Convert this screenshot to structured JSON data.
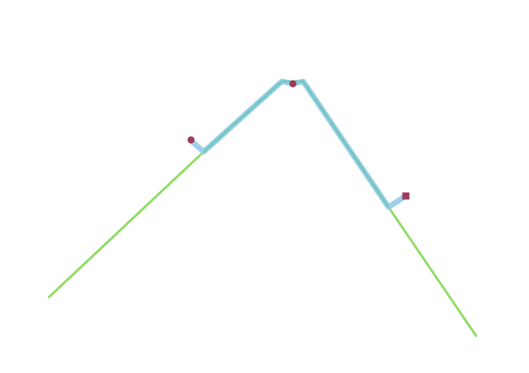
{
  "colors": {
    "background": "#ffffff",
    "route_line": "#8fdc63",
    "highlight_line": "#9dcfe8",
    "highlight_overlap": "#6cc6b8",
    "marker": "#9e3a5a"
  },
  "scene": {
    "route_line": {
      "name": "route-line",
      "interactable": false
    },
    "highlight_path": {
      "name": "highlighted-path",
      "interactable": false
    },
    "markers": [
      {
        "name": "start-marker",
        "shape": "circle",
        "interactable": true
      },
      {
        "name": "waypoint-marker",
        "shape": "circle",
        "interactable": true
      },
      {
        "name": "end-marker",
        "shape": "square",
        "interactable": true
      }
    ]
  }
}
